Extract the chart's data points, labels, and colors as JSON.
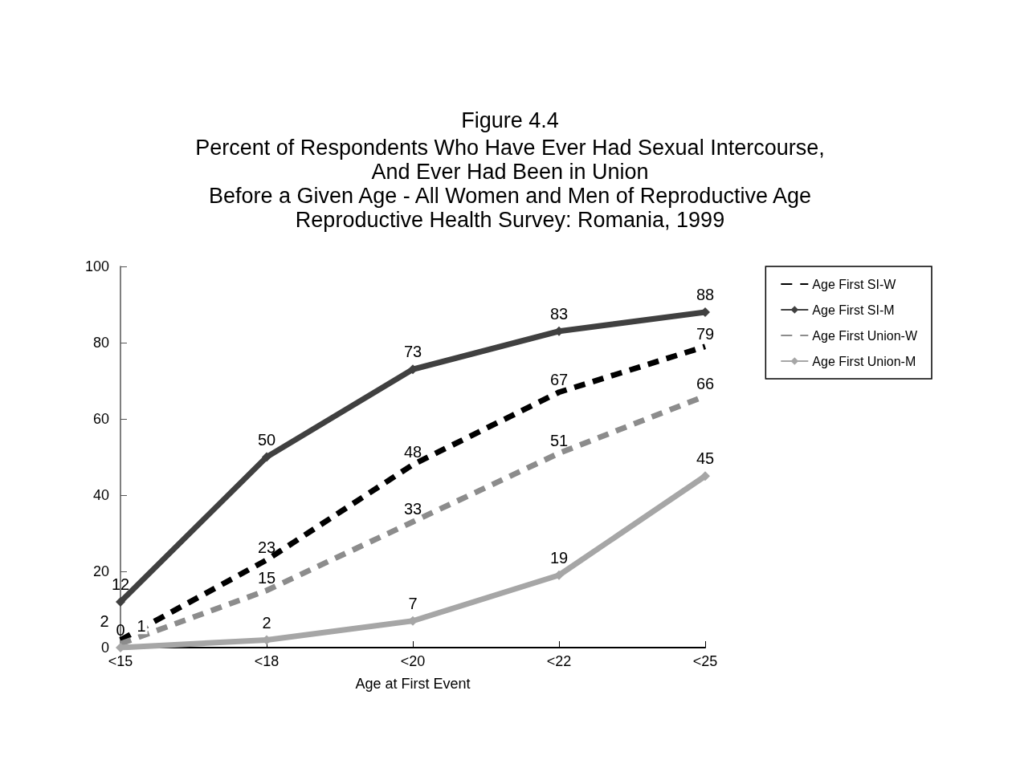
{
  "chart_data": {
    "type": "line",
    "title": "Figure 4.4",
    "subtitle": "Percent of Respondents Who Have Ever Had Sexual Intercourse,\nAnd Ever Had Been in Union\nBefore a Given Age - All Women and Men of Reproductive Age\nReproductive Health Survey: Romania, 1999",
    "xlabel": "Age at First Event",
    "categories": [
      "<15",
      "<18",
      "<20",
      "<22",
      "<25"
    ],
    "series": [
      {
        "name": "Age First SI-W",
        "color": "#000000",
        "values": [
          2,
          23,
          48,
          67,
          79
        ],
        "line_style": "dashed",
        "marker": "none"
      },
      {
        "name": "Age First SI-M",
        "color": "#404040",
        "values": [
          12,
          50,
          73,
          83,
          88
        ],
        "line_style": "solid",
        "marker": "diamond"
      },
      {
        "name": "Age First Union-W",
        "color": "#8c8c8c",
        "values": [
          1,
          15,
          33,
          51,
          66
        ],
        "line_style": "dashed",
        "marker": "none"
      },
      {
        "name": "Age First Union-M",
        "color": "#a6a6a6",
        "values": [
          0,
          2,
          7,
          19,
          45
        ],
        "line_style": "solid",
        "marker": "diamond"
      }
    ],
    "ylim": [
      0,
      100
    ],
    "yticks": [
      0,
      20,
      40,
      60,
      80,
      100
    ],
    "grid": false,
    "legend": "right",
    "data_labels": true
  }
}
